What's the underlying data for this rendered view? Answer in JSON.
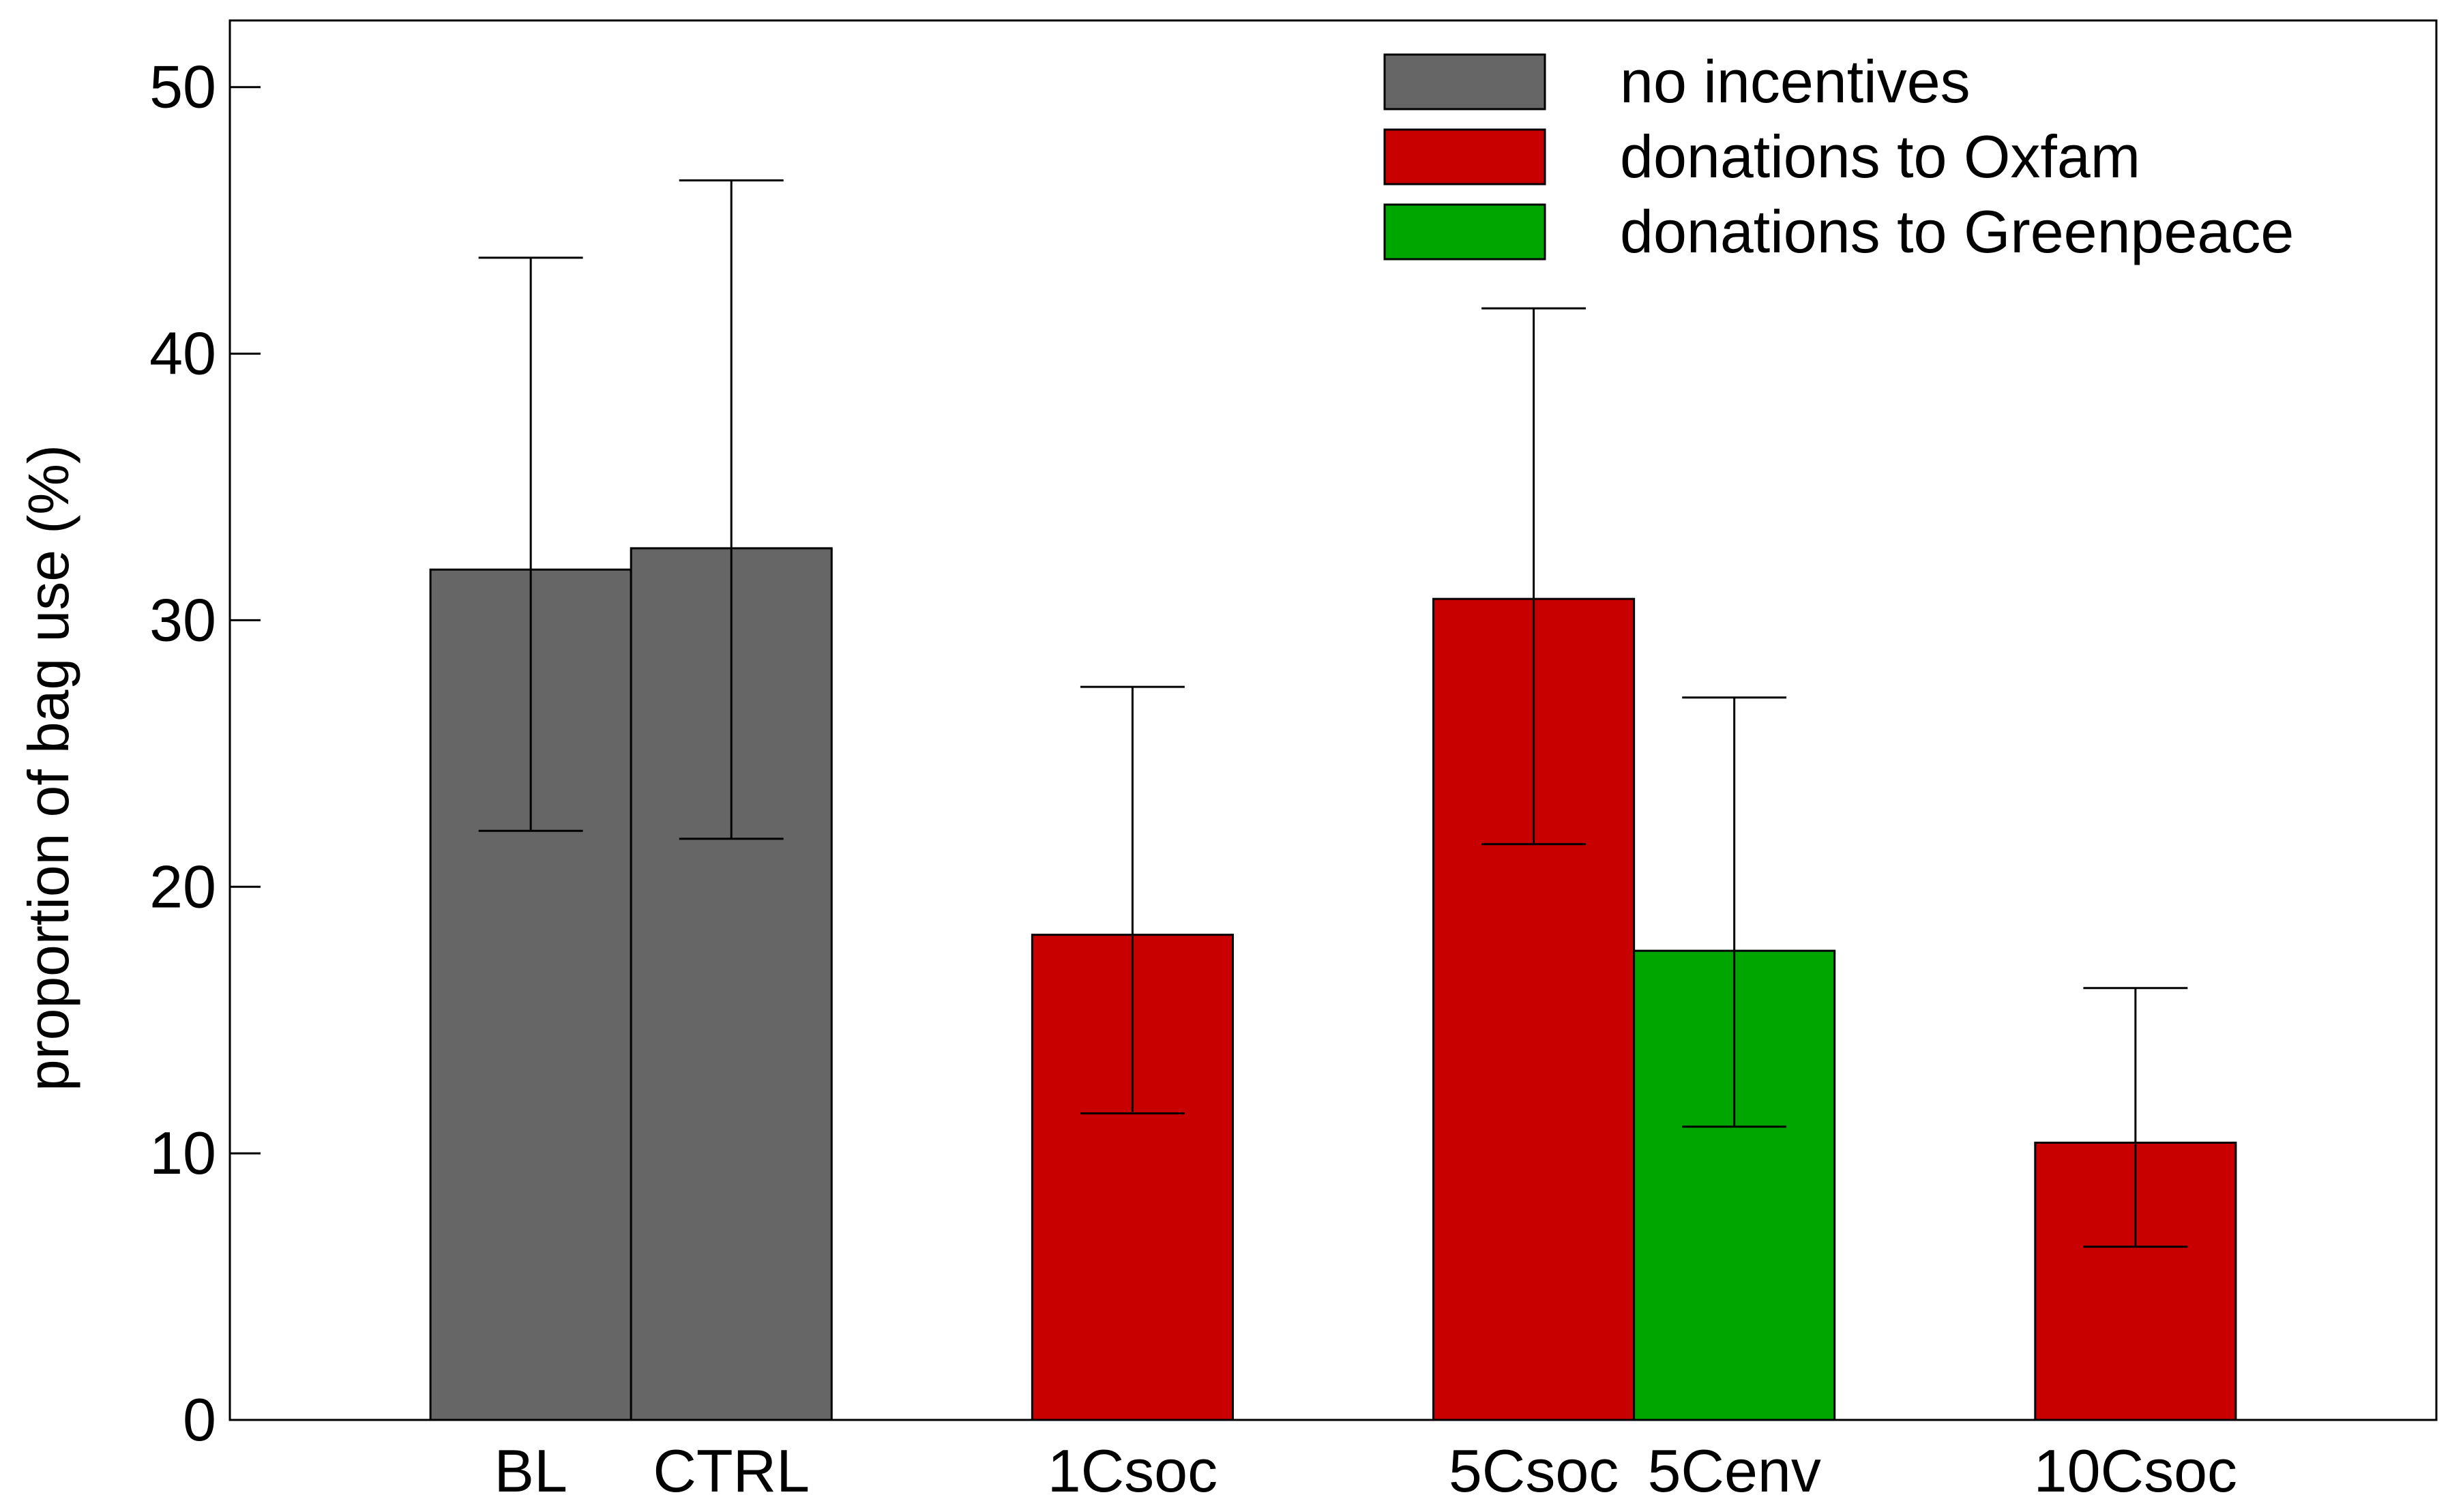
{
  "chart_data": {
    "type": "bar",
    "title": "",
    "xlabel": "",
    "ylabel": "proportion of bag use (%)",
    "ylim": [
      0,
      52.5
    ],
    "yticks": [
      0,
      10,
      20,
      30,
      40,
      50
    ],
    "ytick_labels": [
      "0",
      "10",
      "20",
      "30",
      "40",
      "50"
    ],
    "grid": false,
    "legend_position": "top-right",
    "series_colors": {
      "no incentives": "#666666",
      "donations to Oxfam": "#c80000",
      "donations to Greenpeace": "#00a600"
    },
    "legend": [
      {
        "label": "no incentives",
        "color": "#666666"
      },
      {
        "label": "donations to Oxfam",
        "color": "#c80000"
      },
      {
        "label": "donations to Greenpeace",
        "color": "#00a600"
      }
    ],
    "categories": [
      "BL",
      "CTRL",
      "1Csoc",
      "5Csoc",
      "5Cenv",
      "10Csoc"
    ],
    "category_positions": [
      0.5,
      1.5,
      3.5,
      5.5,
      6.5,
      8.5
    ],
    "x_range": [
      -1,
      10
    ],
    "bars": [
      {
        "label": "BL",
        "value": 31.9,
        "err_low": 22.1,
        "err_high": 43.6,
        "series": "no incentives"
      },
      {
        "label": "CTRL",
        "value": 32.7,
        "err_low": 21.8,
        "err_high": 46.5,
        "series": "no incentives"
      },
      {
        "label": "1Csoc",
        "value": 18.2,
        "err_low": 11.5,
        "err_high": 27.5,
        "series": "donations to Oxfam"
      },
      {
        "label": "5Csoc",
        "value": 30.8,
        "err_low": 21.6,
        "err_high": 41.7,
        "series": "donations to Oxfam"
      },
      {
        "label": "5Cenv",
        "value": 17.6,
        "err_low": 11.0,
        "err_high": 27.1,
        "series": "donations to Greenpeace"
      },
      {
        "label": "10Csoc",
        "value": 10.4,
        "err_low": 6.5,
        "err_high": 16.2,
        "series": "donations to Oxfam"
      }
    ]
  }
}
